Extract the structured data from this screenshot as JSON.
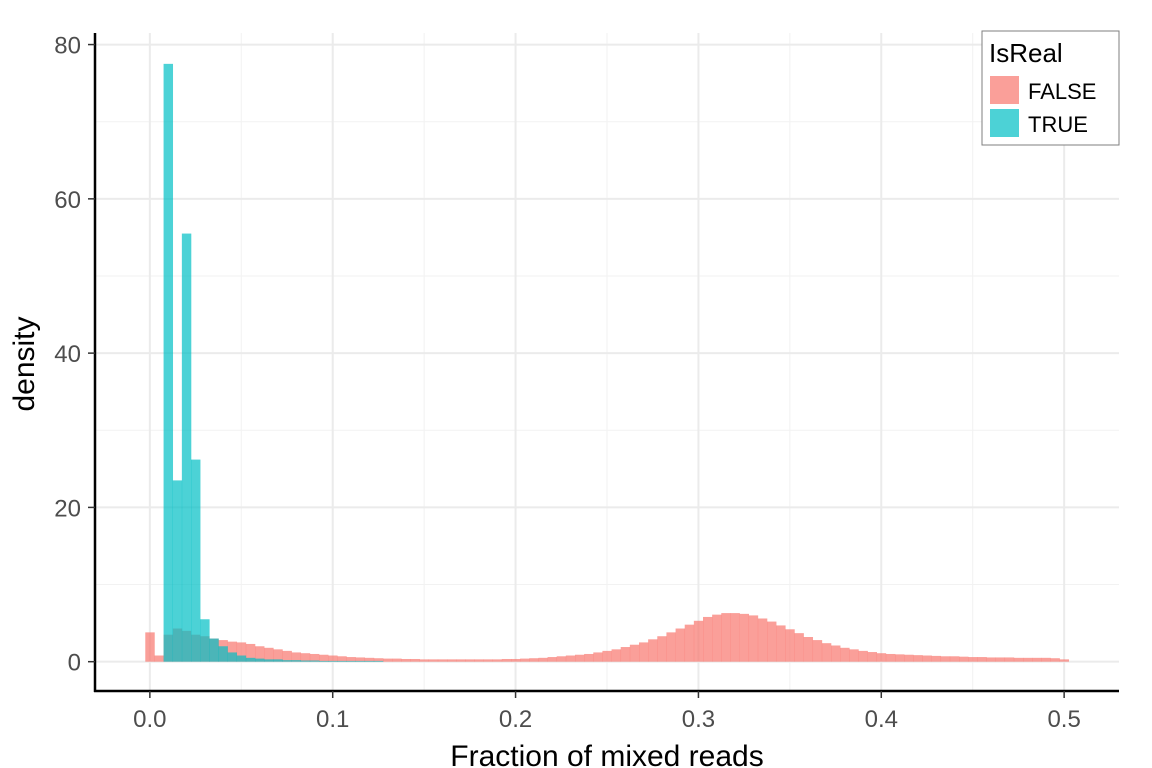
{
  "chart_data": {
    "type": "bar",
    "title": "",
    "xlabel": "Fraction of mixed reads",
    "ylabel": "density",
    "xlim": [
      -0.03,
      0.53
    ],
    "ylim": [
      -3.8,
      81.5
    ],
    "x_ticks": [
      "0.0",
      "0.1",
      "0.2",
      "0.3",
      "0.4",
      "0.5"
    ],
    "y_ticks": [
      "0",
      "20",
      "40",
      "60",
      "80"
    ],
    "x_tick_values": [
      0,
      0.1,
      0.2,
      0.3,
      0.4,
      0.5
    ],
    "y_tick_values": [
      0,
      20,
      40,
      60,
      80
    ],
    "grid": true,
    "bin_width": 0.005,
    "legend": {
      "title": "IsReal",
      "position": "top-right",
      "entries": [
        {
          "label": "FALSE",
          "color": "#F8766D"
        },
        {
          "label": "TRUE",
          "color": "#00BFC4"
        }
      ]
    },
    "series": [
      {
        "name": "FALSE",
        "color": "#F8766D",
        "bin_starts": [
          -0.0025,
          0.0025,
          0.0075,
          0.0125,
          0.0175,
          0.0225,
          0.0275,
          0.0325,
          0.0375,
          0.0425,
          0.0475,
          0.0525,
          0.0575,
          0.0625,
          0.0675,
          0.0725,
          0.0775,
          0.0825,
          0.0875,
          0.0925,
          0.0975,
          0.1025,
          0.1075,
          0.1125,
          0.1175,
          0.1225,
          0.1275,
          0.1325,
          0.1375,
          0.1425,
          0.1475,
          0.1525,
          0.1575,
          0.1625,
          0.1675,
          0.1725,
          0.1775,
          0.1825,
          0.1875,
          0.1925,
          0.1975,
          0.2025,
          0.2075,
          0.2125,
          0.2175,
          0.2225,
          0.2275,
          0.2325,
          0.2375,
          0.2425,
          0.2475,
          0.2525,
          0.2575,
          0.2625,
          0.2675,
          0.2725,
          0.2775,
          0.2825,
          0.2875,
          0.2925,
          0.2975,
          0.3025,
          0.3075,
          0.3125,
          0.3175,
          0.3225,
          0.3275,
          0.3325,
          0.3375,
          0.3425,
          0.3475,
          0.3525,
          0.3575,
          0.3625,
          0.3675,
          0.3725,
          0.3775,
          0.3825,
          0.3875,
          0.3925,
          0.3975,
          0.4025,
          0.4075,
          0.4125,
          0.4175,
          0.4225,
          0.4275,
          0.4325,
          0.4375,
          0.4425,
          0.4475,
          0.4525,
          0.4575,
          0.4625,
          0.4675,
          0.4725,
          0.4775,
          0.4825,
          0.4875,
          0.4925,
          0.4975
        ],
        "values": [
          3.8,
          0.8,
          3.5,
          4.3,
          4.0,
          3.5,
          3.3,
          3.0,
          2.8,
          2.6,
          2.5,
          2.3,
          2.0,
          1.8,
          1.6,
          1.4,
          1.2,
          1.1,
          1.0,
          0.9,
          0.8,
          0.7,
          0.6,
          0.55,
          0.5,
          0.45,
          0.4,
          0.4,
          0.35,
          0.35,
          0.3,
          0.3,
          0.3,
          0.3,
          0.3,
          0.3,
          0.3,
          0.3,
          0.3,
          0.35,
          0.35,
          0.4,
          0.45,
          0.5,
          0.6,
          0.7,
          0.8,
          0.9,
          1.0,
          1.2,
          1.4,
          1.6,
          1.9,
          2.2,
          2.5,
          2.9,
          3.3,
          3.8,
          4.3,
          4.8,
          5.3,
          5.8,
          6.1,
          6.3,
          6.3,
          6.2,
          6.0,
          5.6,
          5.2,
          4.7,
          4.2,
          3.7,
          3.2,
          2.8,
          2.4,
          2.1,
          1.8,
          1.6,
          1.4,
          1.25,
          1.1,
          1.0,
          0.95,
          0.9,
          0.85,
          0.8,
          0.75,
          0.7,
          0.7,
          0.65,
          0.6,
          0.6,
          0.55,
          0.55,
          0.55,
          0.5,
          0.5,
          0.5,
          0.5,
          0.45,
          0.3
        ]
      },
      {
        "name": "TRUE",
        "color": "#00BFC4",
        "bin_starts": [
          0.0075,
          0.0125,
          0.0175,
          0.0225,
          0.0275,
          0.0325,
          0.0375,
          0.0425,
          0.0475,
          0.0525,
          0.0575,
          0.0625,
          0.0675,
          0.0725,
          0.0775,
          0.0825,
          0.0875,
          0.0925,
          0.0975,
          0.1025,
          0.1075,
          0.1125,
          0.1175,
          0.1225
        ],
        "values": [
          77.5,
          23.5,
          55.5,
          26.2,
          5.5,
          3.0,
          2.0,
          1.2,
          0.8,
          0.5,
          0.4,
          0.3,
          0.3,
          0.2,
          0.2,
          0.15,
          0.15,
          0.1,
          0.1,
          0.1,
          0.1,
          0.1,
          0.1,
          0.1
        ]
      }
    ]
  }
}
